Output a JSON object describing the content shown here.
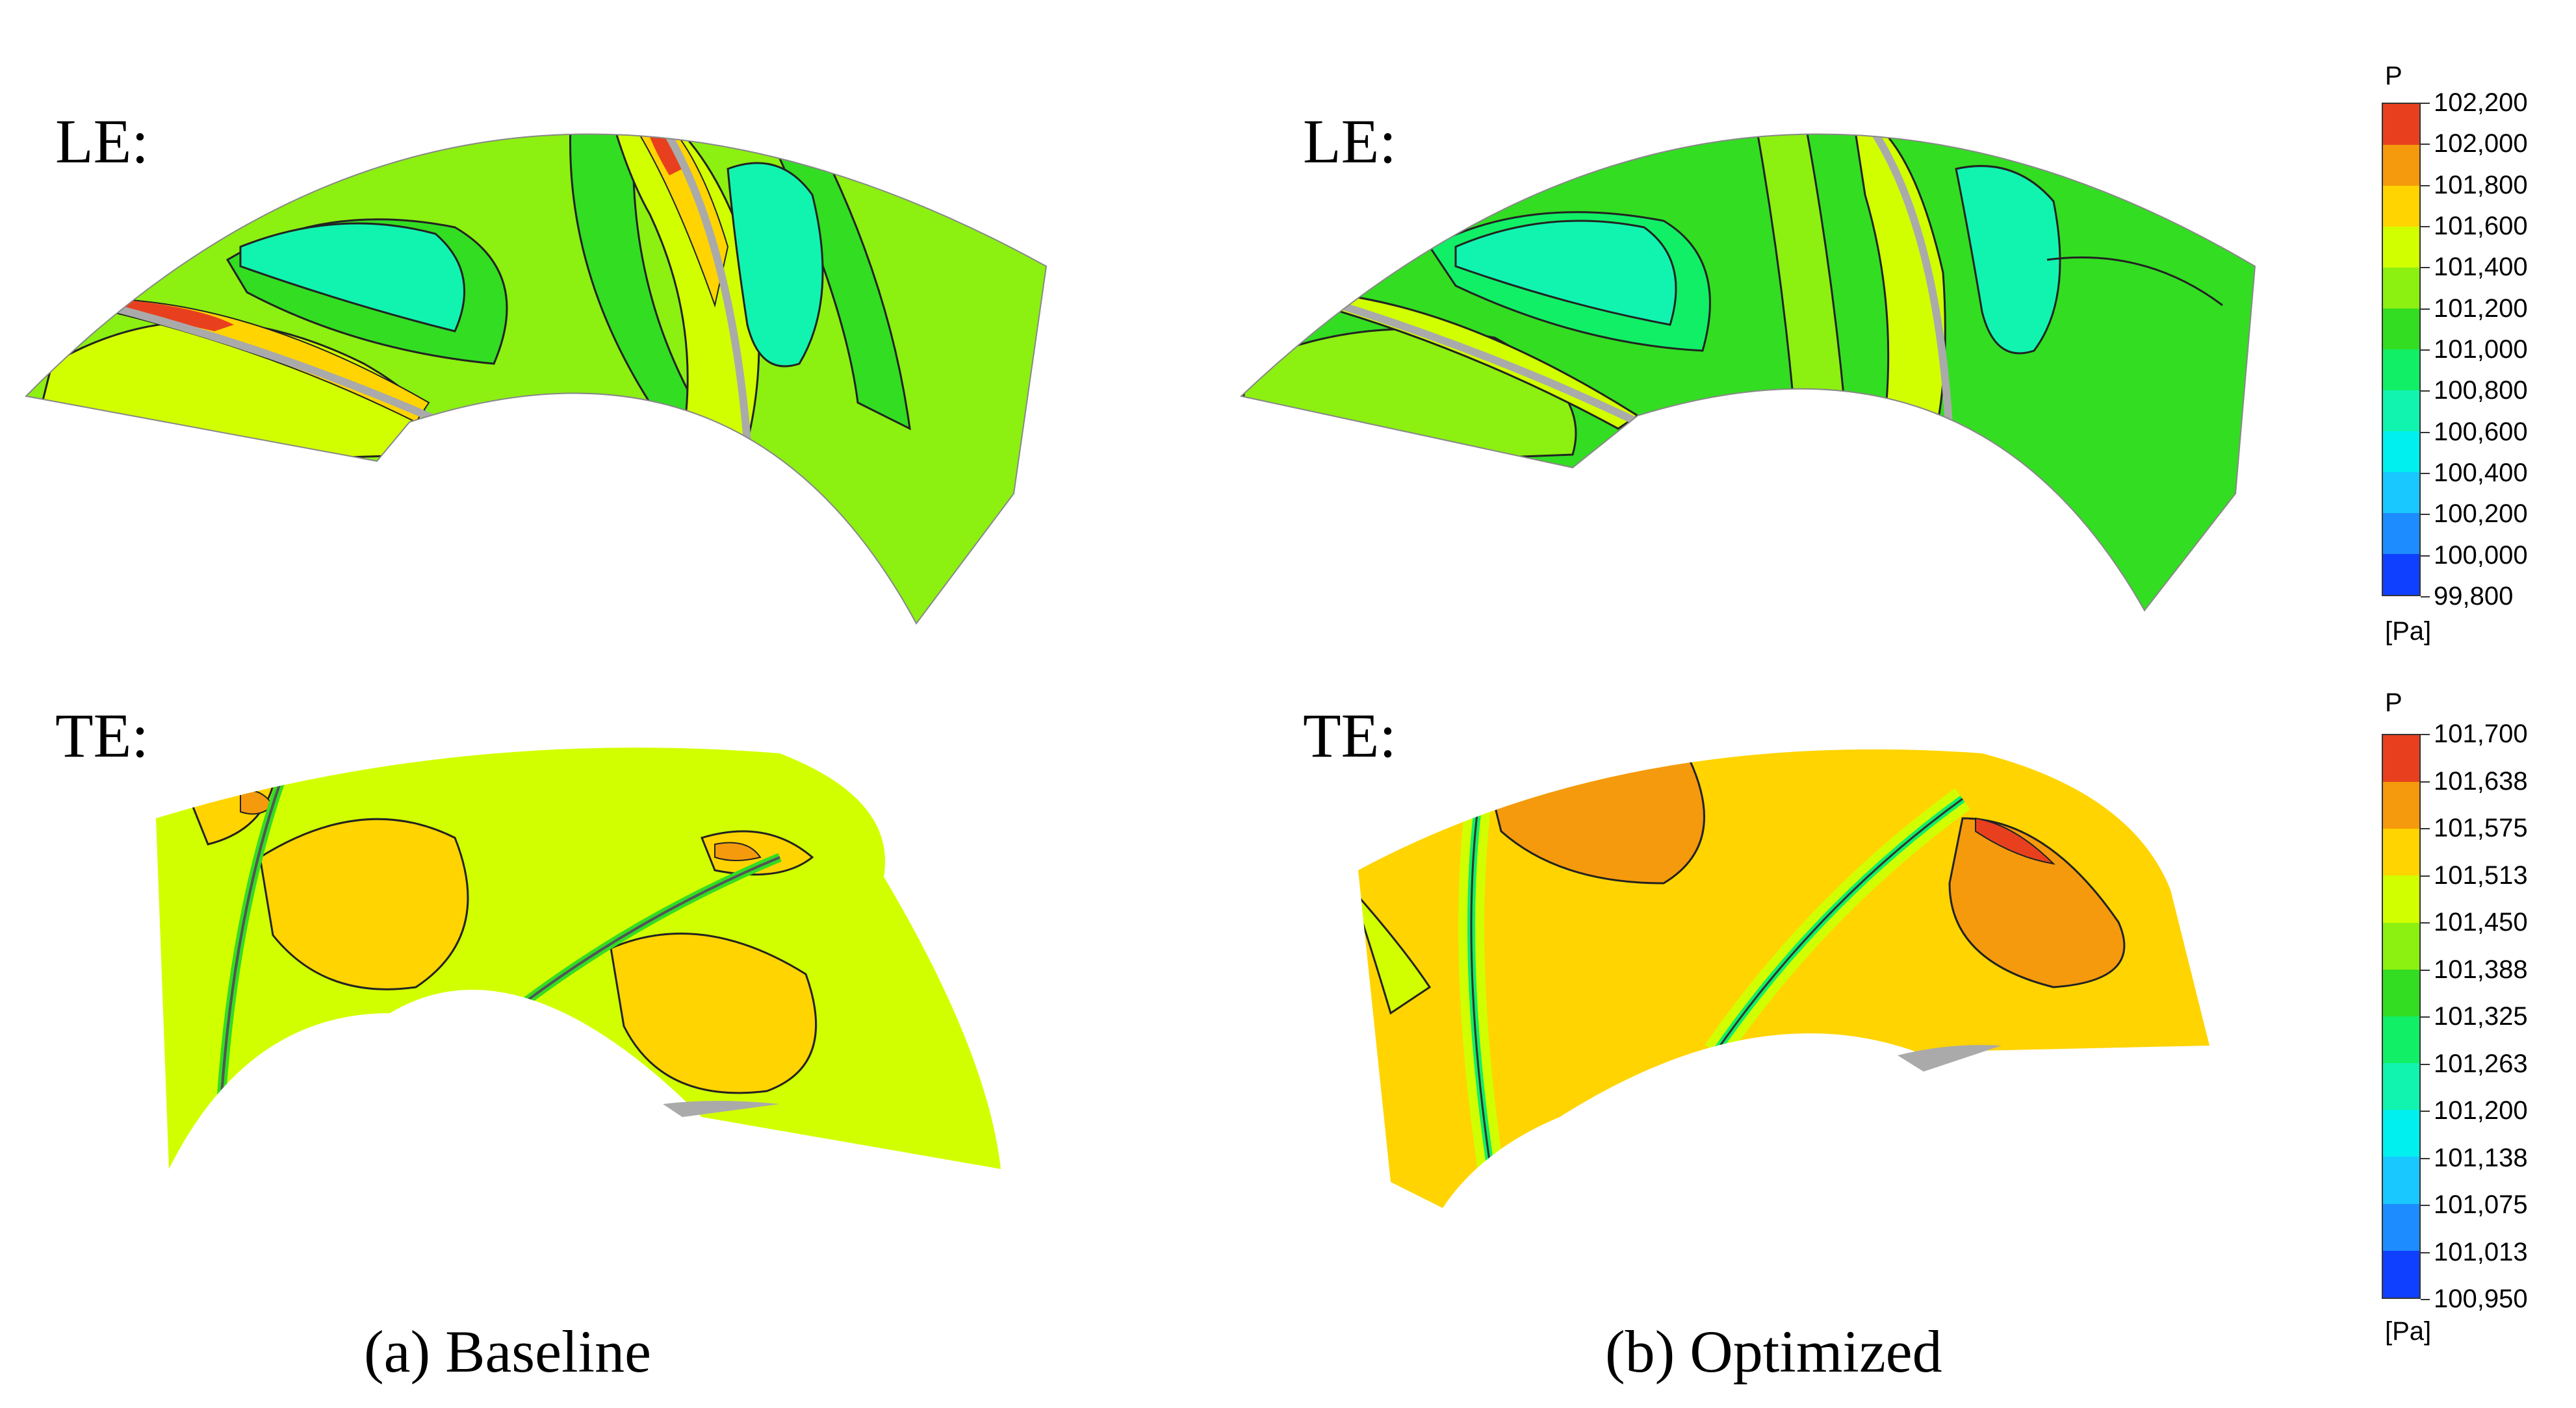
{
  "figure": {
    "row_labels": {
      "top": "LE:",
      "bottom": "TE:"
    },
    "captions": {
      "left": "(a) Baseline",
      "right": "(b) Optimized"
    },
    "colorbars": {
      "le": {
        "title": "P",
        "unit": "[Pa]",
        "ticks": [
          "102,200",
          "102,000",
          "101,800",
          "101,600",
          "101,400",
          "101,200",
          "101,000",
          "100,800",
          "100,600",
          "100,400",
          "100,200",
          "100,000",
          "99,800"
        ],
        "colors": [
          "#e8401e",
          "#f59a0c",
          "#ffd400",
          "#d2ff00",
          "#8cf011",
          "#33dd22",
          "#11ef66",
          "#11f4b0",
          "#00f0f0",
          "#18c8ff",
          "#1d8cff",
          "#1040ff"
        ]
      },
      "te": {
        "title": "P",
        "unit": "[Pa]",
        "ticks": [
          "101,700",
          "101,638",
          "101,575",
          "101,513",
          "101,450",
          "101,388",
          "101,325",
          "101,263",
          "101,200",
          "101,138",
          "101,075",
          "101,013",
          "100,950"
        ],
        "colors": [
          "#e8401e",
          "#f59a0c",
          "#ffd400",
          "#d2ff00",
          "#8cf011",
          "#33dd22",
          "#11ef66",
          "#11f4b0",
          "#00f0f0",
          "#18c8ff",
          "#1d8cff",
          "#1040ff"
        ]
      }
    }
  }
}
